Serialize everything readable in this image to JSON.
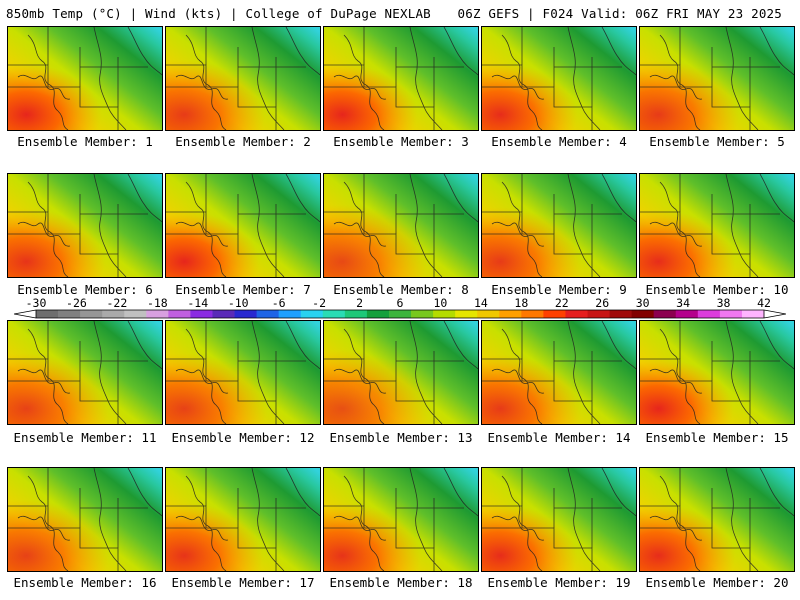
{
  "header": {
    "left_title": "850mb Temp (°C) | Wind (kts) | College of DuPage NEXLAB",
    "right_title": "06Z GEFS | F024 Valid: 06Z FRI MAY 23 2025"
  },
  "panels": [
    {
      "label": "Ensemble Member: 1",
      "warmth": 1.0
    },
    {
      "label": "Ensemble Member: 2",
      "warmth": 0.85
    },
    {
      "label": "Ensemble Member: 3",
      "warmth": 1.0
    },
    {
      "label": "Ensemble Member: 4",
      "warmth": 0.95
    },
    {
      "label": "Ensemble Member: 5",
      "warmth": 0.85
    },
    {
      "label": "Ensemble Member: 6",
      "warmth": 0.9
    },
    {
      "label": "Ensemble Member: 7",
      "warmth": 1.0
    },
    {
      "label": "Ensemble Member: 8",
      "warmth": 0.75
    },
    {
      "label": "Ensemble Member: 9",
      "warmth": 0.85
    },
    {
      "label": "Ensemble Member: 10",
      "warmth": 0.95
    },
    {
      "label": "Ensemble Member: 11",
      "warmth": 0.8
    },
    {
      "label": "Ensemble Member: 12",
      "warmth": 0.8
    },
    {
      "label": "Ensemble Member: 13",
      "warmth": 0.7
    },
    {
      "label": "Ensemble Member: 14",
      "warmth": 0.85
    },
    {
      "label": "Ensemble Member: 15",
      "warmth": 1.0
    },
    {
      "label": "Ensemble Member: 16",
      "warmth": 0.8
    },
    {
      "label": "Ensemble Member: 17",
      "warmth": 0.9
    },
    {
      "label": "Ensemble Member: 18",
      "warmth": 0.9
    },
    {
      "label": "Ensemble Member: 19",
      "warmth": 0.95
    },
    {
      "label": "Ensemble Member: 20",
      "warmth": 0.95
    }
  ],
  "colorbar": {
    "ticks": [
      "-30",
      "-26",
      "-22",
      "-18",
      "-14",
      "-10",
      "-6",
      "-2",
      "2",
      "6",
      "10",
      "14",
      "18",
      "22",
      "26",
      "30",
      "34",
      "38",
      "42"
    ],
    "colors": [
      "#6e6e6e",
      "#808080",
      "#969696",
      "#aaaaaa",
      "#c0c0c0",
      "#d8a0e0",
      "#c060e0",
      "#8a2be2",
      "#5a2ab8",
      "#2828d0",
      "#1e64e6",
      "#1ea0ff",
      "#28d2f0",
      "#2adcb4",
      "#1ec878",
      "#14a03c",
      "#3cb43c",
      "#78c81e",
      "#b4dc00",
      "#e6e600",
      "#f0c800",
      "#ffa000",
      "#ff7800",
      "#ff4000",
      "#e61e1e",
      "#c81414",
      "#a00a0a",
      "#820000",
      "#8c0050",
      "#b4008c",
      "#dc3cdc",
      "#f078f0",
      "#ffb4ff"
    ]
  }
}
